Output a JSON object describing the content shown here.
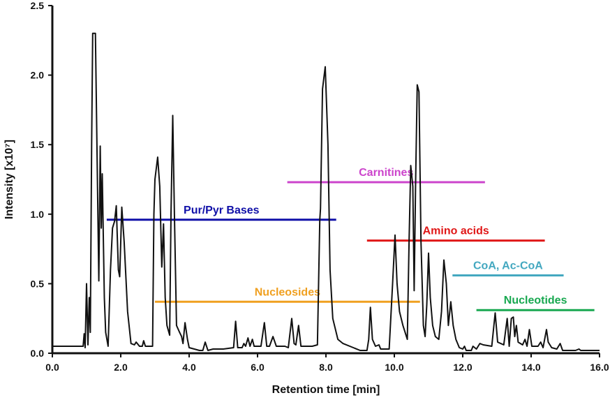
{
  "chart_data": {
    "type": "line",
    "title": "",
    "xlabel": "Retention time [min]",
    "ylabel": "Intensity [x10⁷]",
    "xlim": [
      0,
      16
    ],
    "ylim": [
      0,
      2.5
    ],
    "xticks": [
      "0.0",
      "2.0",
      "4.0",
      "6.0",
      "8.0",
      "10.0",
      "12.0",
      "14.0",
      "16.0"
    ],
    "yticks": [
      "0.0",
      "0.5",
      "1.0",
      "1.5",
      "2.0",
      "2.5"
    ],
    "grid": false,
    "series": [
      {
        "color": "#111111",
        "points": [
          [
            0,
            0.05
          ],
          [
            0.9,
            0.05
          ],
          [
            0.93,
            0.14
          ],
          [
            0.96,
            0.04
          ],
          [
            1.0,
            0.5
          ],
          [
            1.04,
            0.06
          ],
          [
            1.08,
            0.4
          ],
          [
            1.11,
            0.15
          ],
          [
            1.15,
            1.5
          ],
          [
            1.18,
            2.3
          ],
          [
            1.26,
            2.3
          ],
          [
            1.32,
            1.2
          ],
          [
            1.36,
            0.52
          ],
          [
            1.4,
            1.49
          ],
          [
            1.43,
            0.9
          ],
          [
            1.46,
            1.29
          ],
          [
            1.52,
            0.4
          ],
          [
            1.56,
            0.15
          ],
          [
            1.63,
            0.05
          ],
          [
            1.7,
            0.6
          ],
          [
            1.76,
            0.9
          ],
          [
            1.82,
            0.95
          ],
          [
            1.87,
            1.06
          ],
          [
            1.93,
            0.6
          ],
          [
            1.97,
            0.55
          ],
          [
            2.03,
            1.05
          ],
          [
            2.1,
            0.8
          ],
          [
            2.2,
            0.3
          ],
          [
            2.3,
            0.07
          ],
          [
            2.4,
            0.06
          ],
          [
            2.45,
            0.08
          ],
          [
            2.55,
            0.05
          ],
          [
            2.63,
            0.05
          ],
          [
            2.67,
            0.09
          ],
          [
            2.72,
            0.05
          ],
          [
            2.93,
            0.05
          ],
          [
            2.97,
            1.0
          ],
          [
            3.0,
            1.25
          ],
          [
            3.08,
            1.41
          ],
          [
            3.14,
            1.2
          ],
          [
            3.2,
            0.62
          ],
          [
            3.25,
            0.93
          ],
          [
            3.3,
            0.4
          ],
          [
            3.35,
            0.2
          ],
          [
            3.43,
            0.13
          ],
          [
            3.47,
            1.0
          ],
          [
            3.52,
            1.71
          ],
          [
            3.57,
            1.0
          ],
          [
            3.63,
            0.2
          ],
          [
            3.72,
            0.15
          ],
          [
            3.78,
            0.12
          ],
          [
            3.82,
            0.07
          ],
          [
            3.88,
            0.22
          ],
          [
            3.95,
            0.1
          ],
          [
            4.0,
            0.04
          ],
          [
            4.3,
            0.02
          ],
          [
            4.4,
            0.02
          ],
          [
            4.47,
            0.08
          ],
          [
            4.55,
            0.02
          ],
          [
            4.7,
            0.03
          ],
          [
            5.0,
            0.03
          ],
          [
            5.3,
            0.04
          ],
          [
            5.36,
            0.23
          ],
          [
            5.42,
            0.04
          ],
          [
            5.55,
            0.04
          ],
          [
            5.6,
            0.07
          ],
          [
            5.65,
            0.05
          ],
          [
            5.72,
            0.11
          ],
          [
            5.78,
            0.05
          ],
          [
            5.85,
            0.1
          ],
          [
            5.9,
            0.05
          ],
          [
            6.1,
            0.05
          ],
          [
            6.2,
            0.22
          ],
          [
            6.27,
            0.05
          ],
          [
            6.35,
            0.05
          ],
          [
            6.45,
            0.12
          ],
          [
            6.55,
            0.05
          ],
          [
            6.8,
            0.05
          ],
          [
            6.9,
            0.04
          ],
          [
            7.0,
            0.25
          ],
          [
            7.07,
            0.07
          ],
          [
            7.12,
            0.06
          ],
          [
            7.2,
            0.2
          ],
          [
            7.27,
            0.05
          ],
          [
            7.6,
            0.05
          ],
          [
            7.75,
            0.06
          ],
          [
            7.82,
            0.96
          ],
          [
            7.84,
            1.04
          ],
          [
            7.9,
            1.9
          ],
          [
            7.98,
            2.06
          ],
          [
            8.06,
            1.5
          ],
          [
            8.12,
            0.6
          ],
          [
            8.2,
            0.25
          ],
          [
            8.35,
            0.1
          ],
          [
            8.5,
            0.07
          ],
          [
            8.8,
            0.04
          ],
          [
            9.0,
            0.02
          ],
          [
            9.2,
            0.02
          ],
          [
            9.25,
            0.1
          ],
          [
            9.3,
            0.33
          ],
          [
            9.36,
            0.1
          ],
          [
            9.45,
            0.05
          ],
          [
            9.55,
            0.06
          ],
          [
            9.6,
            0.03
          ],
          [
            9.85,
            0.03
          ],
          [
            9.95,
            0.5
          ],
          [
            10.02,
            0.85
          ],
          [
            10.08,
            0.5
          ],
          [
            10.15,
            0.3
          ],
          [
            10.25,
            0.2
          ],
          [
            10.38,
            0.1
          ],
          [
            10.43,
            0.8
          ],
          [
            10.48,
            1.35
          ],
          [
            10.54,
            1.2
          ],
          [
            10.58,
            0.45
          ],
          [
            10.62,
            1.2
          ],
          [
            10.67,
            1.93
          ],
          [
            10.72,
            1.88
          ],
          [
            10.78,
            0.8
          ],
          [
            10.85,
            0.2
          ],
          [
            10.9,
            0.12
          ],
          [
            10.95,
            0.35
          ],
          [
            11.0,
            0.72
          ],
          [
            11.05,
            0.4
          ],
          [
            11.12,
            0.2
          ],
          [
            11.2,
            0.12
          ],
          [
            11.3,
            0.1
          ],
          [
            11.38,
            0.3
          ],
          [
            11.45,
            0.67
          ],
          [
            11.52,
            0.5
          ],
          [
            11.58,
            0.2
          ],
          [
            11.65,
            0.37
          ],
          [
            11.72,
            0.2
          ],
          [
            11.8,
            0.1
          ],
          [
            11.9,
            0.04
          ],
          [
            12.0,
            0.03
          ],
          [
            12.05,
            0.05
          ],
          [
            12.1,
            0.02
          ],
          [
            12.25,
            0.02
          ],
          [
            12.3,
            0.05
          ],
          [
            12.4,
            0.03
          ],
          [
            12.5,
            0.07
          ],
          [
            12.6,
            0.06
          ],
          [
            12.85,
            0.05
          ],
          [
            12.95,
            0.29
          ],
          [
            13.02,
            0.08
          ],
          [
            13.2,
            0.06
          ],
          [
            13.3,
            0.25
          ],
          [
            13.36,
            0.05
          ],
          [
            13.42,
            0.25
          ],
          [
            13.48,
            0.26
          ],
          [
            13.52,
            0.12
          ],
          [
            13.57,
            0.2
          ],
          [
            13.62,
            0.08
          ],
          [
            13.75,
            0.06
          ],
          [
            13.82,
            0.1
          ],
          [
            13.88,
            0.05
          ],
          [
            13.95,
            0.17
          ],
          [
            14.02,
            0.05
          ],
          [
            14.2,
            0.05
          ],
          [
            14.28,
            0.08
          ],
          [
            14.35,
            0.04
          ],
          [
            14.45,
            0.17
          ],
          [
            14.5,
            0.08
          ],
          [
            14.6,
            0.04
          ],
          [
            14.75,
            0.03
          ],
          [
            14.85,
            0.07
          ],
          [
            14.92,
            0.02
          ],
          [
            15.3,
            0.02
          ],
          [
            15.4,
            0.03
          ],
          [
            15.45,
            0.02
          ],
          [
            16.0,
            0.02
          ]
        ]
      }
    ],
    "annotations": [
      {
        "label": "Carnitines",
        "x_range": [
          6.87,
          12.65
        ],
        "y": 1.23,
        "color": "#cc44cc"
      },
      {
        "label": "Pur/Pyr Bases",
        "x_range": [
          1.59,
          8.3
        ],
        "y": 0.96,
        "color": "#1010a8"
      },
      {
        "label": "Amino acids",
        "x_range": [
          9.2,
          14.4
        ],
        "y": 0.81,
        "color": "#e01818"
      },
      {
        "label": "CoA, Ac-CoA",
        "x_range": [
          11.7,
          14.95
        ],
        "y": 0.56,
        "color": "#44a8c0"
      },
      {
        "label": "Nucleosides",
        "x_range": [
          3.0,
          10.75
        ],
        "y": 0.37,
        "color": "#f0a020"
      },
      {
        "label": "Nucleotides",
        "x_range": [
          12.4,
          15.85
        ],
        "y": 0.31,
        "color": "#18a850"
      }
    ]
  }
}
